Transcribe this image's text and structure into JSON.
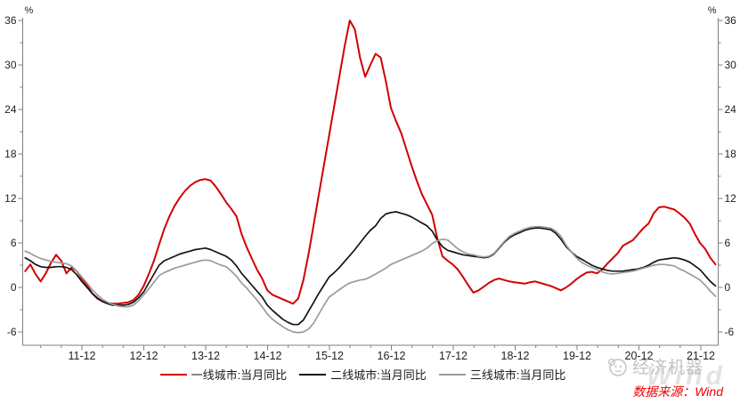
{
  "chart_data": {
    "type": "line",
    "unit": "%",
    "start_month": "2011-01",
    "months": 135,
    "x_tick_labels": [
      "11-12",
      "12-12",
      "13-12",
      "14-12",
      "15-12",
      "16-12",
      "17-12",
      "18-12",
      "19-12",
      "20-12",
      "21-12"
    ],
    "y_ticks": [
      36,
      30,
      24,
      18,
      12,
      6,
      0,
      -6
    ],
    "y_minor_ticks": [
      33,
      27,
      21,
      15,
      9,
      3,
      -3
    ],
    "ylim": [
      -7.8,
      38
    ],
    "grid": false,
    "legend_position": "bottom",
    "axis_color": "#7f7f7f",
    "label_color": "#1f1f1f",
    "series": [
      {
        "name": "一线城市:当月同比",
        "color": "#d10000",
        "values": [
          2.2,
          3.1,
          1.8,
          0.8,
          1.9,
          3.3,
          4.4,
          3.6,
          1.9,
          2.7,
          2.2,
          1.2,
          0.3,
          -0.8,
          -1.5,
          -1.9,
          -2.1,
          -2.2,
          -2.2,
          -2.1,
          -2.0,
          -1.7,
          -1.0,
          0.2,
          1.8,
          3.6,
          5.8,
          7.9,
          9.6,
          11.0,
          12.1,
          13.0,
          13.7,
          14.2,
          14.5,
          14.6,
          14.4,
          13.6,
          12.6,
          11.5,
          10.6,
          9.6,
          7.2,
          5.4,
          3.9,
          2.4,
          1.2,
          -0.4,
          -1.0,
          -1.3,
          -1.6,
          -1.9,
          -2.2,
          -1.5,
          1.0,
          4.5,
          8.5,
          12.5,
          16.5,
          20.5,
          24.5,
          28.5,
          32.5,
          36.0,
          34.8,
          31.0,
          28.4,
          30.0,
          31.5,
          31.0,
          27.8,
          24.2,
          22.4,
          20.8,
          18.6,
          16.4,
          14.4,
          12.6,
          11.2,
          9.8,
          6.6,
          4.2,
          3.6,
          3.1,
          2.4,
          1.4,
          0.3,
          -0.7,
          -0.4,
          0.1,
          0.6,
          1.0,
          1.2,
          1.0,
          0.8,
          0.7,
          0.6,
          0.5,
          0.7,
          0.8,
          0.6,
          0.4,
          0.2,
          -0.1,
          -0.4,
          0.0,
          0.5,
          1.1,
          1.6,
          2.0,
          2.1,
          1.9,
          2.4,
          3.2,
          3.9,
          4.6,
          5.6,
          6.0,
          6.4,
          7.2,
          8.0,
          8.6,
          10.0,
          10.8,
          10.9,
          10.7,
          10.5,
          10.0,
          9.4,
          8.6,
          7.2,
          6.0,
          5.2,
          4.0,
          3.1
        ]
      },
      {
        "name": "二线城市:当月同比",
        "color": "#141414",
        "values": [
          4.0,
          3.6,
          3.1,
          2.8,
          2.7,
          2.7,
          2.8,
          2.8,
          2.7,
          2.4,
          1.7,
          0.8,
          0.0,
          -0.8,
          -1.4,
          -1.9,
          -2.2,
          -2.4,
          -2.4,
          -2.4,
          -2.3,
          -2.0,
          -1.4,
          -0.6,
          0.6,
          1.8,
          3.0,
          3.6,
          3.9,
          4.2,
          4.5,
          4.7,
          4.9,
          5.1,
          5.2,
          5.3,
          5.1,
          4.8,
          4.5,
          4.2,
          3.7,
          2.9,
          1.9,
          1.1,
          0.3,
          -0.5,
          -1.3,
          -2.4,
          -3.1,
          -3.7,
          -4.3,
          -4.7,
          -5.0,
          -5.0,
          -4.4,
          -3.2,
          -2.0,
          -0.8,
          0.3,
          1.4,
          2.0,
          2.7,
          3.5,
          4.3,
          5.1,
          6.0,
          6.9,
          7.7,
          8.3,
          9.3,
          9.9,
          10.1,
          10.2,
          10.0,
          9.8,
          9.5,
          9.1,
          8.7,
          8.3,
          7.6,
          6.4,
          5.5,
          5.0,
          4.8,
          4.6,
          4.4,
          4.3,
          4.2,
          4.1,
          4.0,
          4.1,
          4.5,
          5.3,
          6.1,
          6.7,
          7.1,
          7.4,
          7.7,
          7.9,
          8.0,
          8.0,
          7.9,
          7.8,
          7.3,
          6.5,
          5.5,
          4.8,
          4.2,
          3.8,
          3.4,
          3.0,
          2.7,
          2.5,
          2.3,
          2.2,
          2.2,
          2.2,
          2.3,
          2.4,
          2.5,
          2.7,
          3.0,
          3.4,
          3.7,
          3.8,
          3.9,
          4.0,
          3.9,
          3.7,
          3.4,
          2.9,
          2.4,
          1.6,
          0.8,
          0.2
        ]
      },
      {
        "name": "三线城市:当月同比",
        "color": "#9b9b9b",
        "values": [
          4.9,
          4.6,
          4.2,
          3.9,
          3.7,
          3.5,
          3.4,
          3.3,
          3.2,
          2.9,
          2.2,
          1.4,
          0.6,
          -0.3,
          -1.0,
          -1.6,
          -2.0,
          -2.3,
          -2.5,
          -2.6,
          -2.6,
          -2.4,
          -1.8,
          -1.0,
          -0.2,
          0.7,
          1.6,
          2.0,
          2.3,
          2.6,
          2.8,
          3.0,
          3.2,
          3.4,
          3.6,
          3.7,
          3.6,
          3.3,
          3.0,
          2.8,
          2.2,
          1.5,
          0.6,
          -0.1,
          -0.9,
          -1.7,
          -2.6,
          -3.6,
          -4.3,
          -4.8,
          -5.3,
          -5.7,
          -6.0,
          -6.1,
          -6.0,
          -5.6,
          -4.8,
          -3.6,
          -2.4,
          -1.3,
          -0.8,
          -0.3,
          0.2,
          0.6,
          0.8,
          1.0,
          1.1,
          1.4,
          1.8,
          2.2,
          2.6,
          3.1,
          3.4,
          3.7,
          4.0,
          4.3,
          4.6,
          4.9,
          5.3,
          5.9,
          6.3,
          6.5,
          6.4,
          5.8,
          5.2,
          4.8,
          4.5,
          4.4,
          4.2,
          4.1,
          4.2,
          4.6,
          5.4,
          6.2,
          6.9,
          7.3,
          7.6,
          7.9,
          8.1,
          8.2,
          8.2,
          8.1,
          8.0,
          7.6,
          6.9,
          5.7,
          4.8,
          4.0,
          3.4,
          3.0,
          2.7,
          2.4,
          2.1,
          1.9,
          1.8,
          1.9,
          2.0,
          2.1,
          2.2,
          2.4,
          2.6,
          2.8,
          3.0,
          3.1,
          3.1,
          3.0,
          2.9,
          2.5,
          2.2,
          1.8,
          1.4,
          1.0,
          0.3,
          -0.5,
          -1.2
        ]
      }
    ]
  },
  "axis": {
    "percent_label_left": "%",
    "percent_label_right": "%"
  },
  "footer": {
    "brand": "经济机器",
    "watermark": "Wind",
    "source": "数据来源：Wind"
  }
}
